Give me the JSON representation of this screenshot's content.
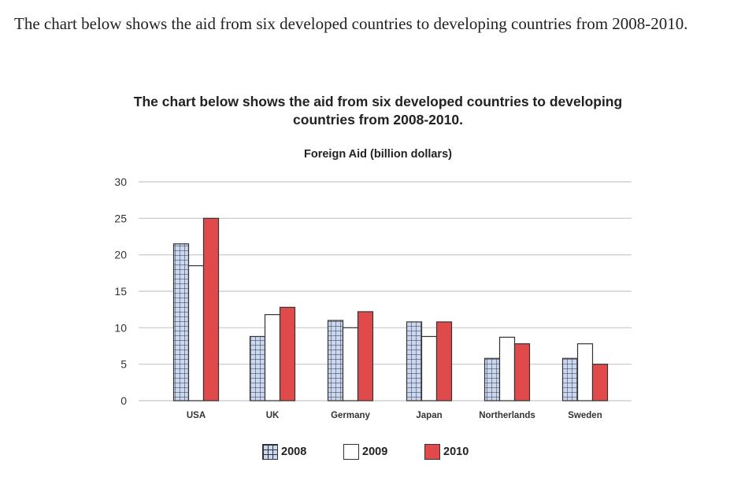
{
  "intro_text": "The chart below shows the aid from six developed countries to developing countries from 2008-2010.",
  "chart_data": {
    "type": "bar",
    "title": "The chart below shows the aid from six developed countries to developing countries from 2008-2010.",
    "subtitle": "Foreign Aid (billion dollars)",
    "xlabel": "",
    "ylabel": "",
    "ylim": [
      0,
      30
    ],
    "yticks": [
      0,
      5,
      10,
      15,
      20,
      25,
      30
    ],
    "grid": true,
    "legend_position": "bottom",
    "categories": [
      "USA",
      "UK",
      "Germany",
      "Japan",
      "Northerlands",
      "Sweden"
    ],
    "series": [
      {
        "name": "2008",
        "values": [
          21.5,
          8.8,
          11.0,
          10.8,
          5.8,
          5.8
        ],
        "color": "#c9d7f2",
        "pattern": "grid"
      },
      {
        "name": "2009",
        "values": [
          18.5,
          11.8,
          10.0,
          8.8,
          8.7,
          7.8
        ],
        "color": "#ffffff",
        "pattern": "none"
      },
      {
        "name": "2010",
        "values": [
          25.0,
          12.8,
          12.2,
          10.8,
          7.8,
          5.0
        ],
        "color": "#e14a4a",
        "pattern": "none"
      }
    ]
  }
}
